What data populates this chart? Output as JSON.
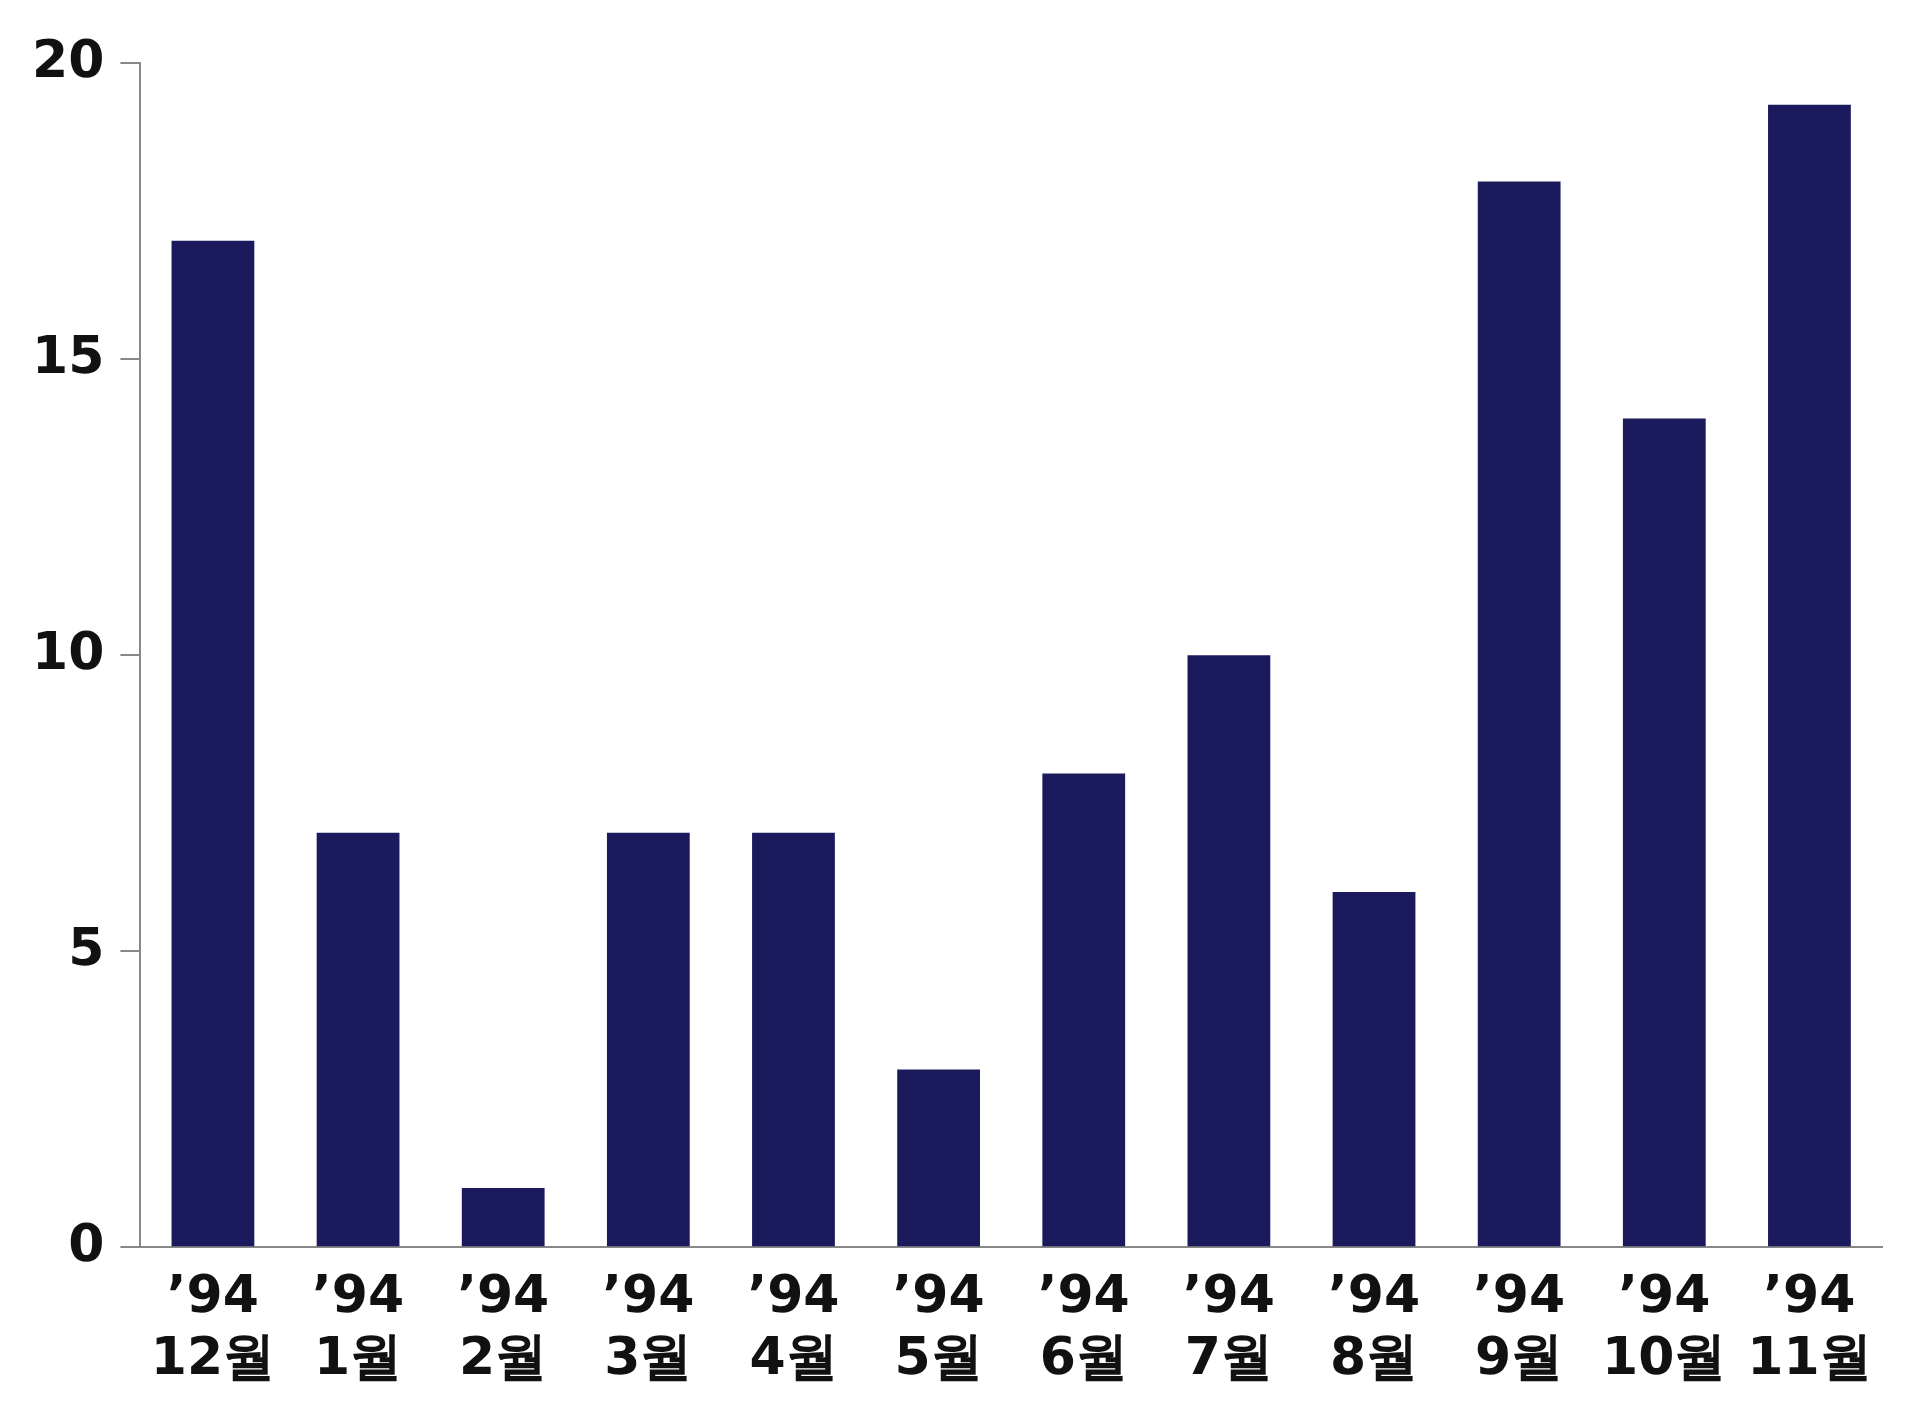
{
  "chart_data": {
    "type": "bar",
    "categories": [
      "’94\n12월",
      "’94\n1월",
      "’94\n2월",
      "’94\n3월",
      "’94\n4월",
      "’94\n5월",
      "’94\n6월",
      "’94\n7월",
      "’94\n8월",
      "’94\n9월",
      "’94\n10월",
      "’94\n11월"
    ],
    "values": [
      17,
      7,
      1,
      7,
      7,
      3,
      8,
      10,
      6,
      18,
      14,
      19.3
    ],
    "color": "#1b1a5c",
    "ylim": [
      0,
      20
    ],
    "yticks": [
      0,
      5,
      10,
      15,
      20
    ],
    "grid": false,
    "legend": false
  }
}
